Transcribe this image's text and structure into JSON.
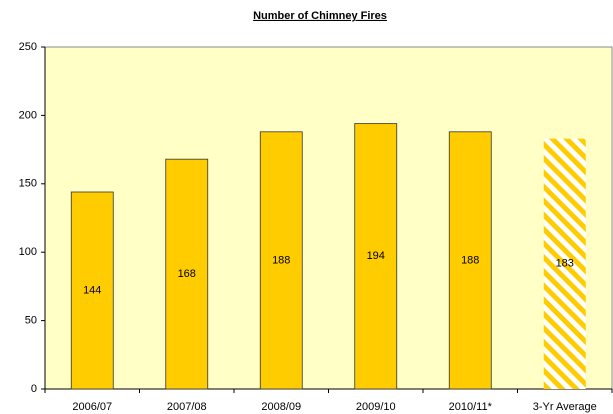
{
  "chart_data": {
    "type": "bar",
    "title": "Number of Chimney Fires",
    "categories": [
      "2006/07",
      "2007/08",
      "2008/09",
      "2009/10",
      "2010/11*",
      "3-Yr Average"
    ],
    "values": [
      144,
      168,
      188,
      194,
      188,
      183
    ],
    "color": "#FFCC00",
    "hatched": [
      false,
      false,
      false,
      false,
      false,
      true
    ],
    "ylim": [
      0,
      250
    ],
    "yticks": [
      0,
      50,
      100,
      150,
      200,
      250
    ],
    "grid": false
  }
}
